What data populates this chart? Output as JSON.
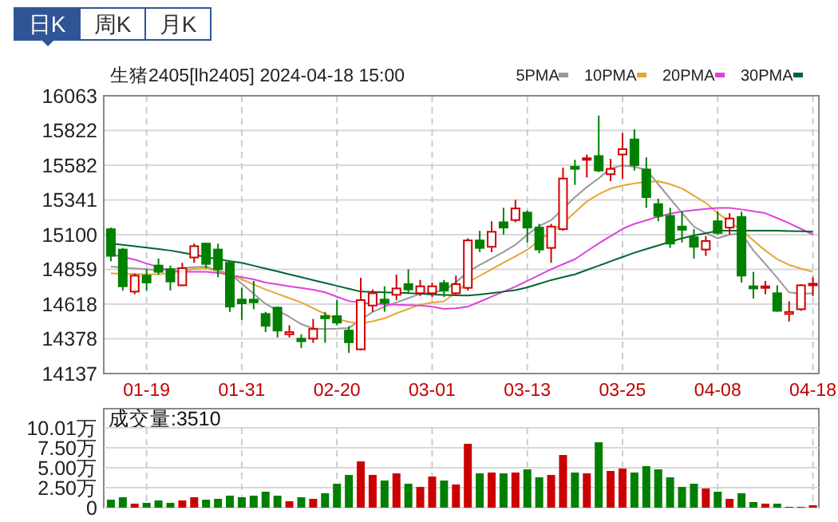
{
  "chart_data": [
    {
      "type": "candlestick",
      "title": "生猪2405[lh2405] 2024-04-18 15:00",
      "annotations": [
        "日K",
        "周K",
        "月K"
      ],
      "categories": [
        null,
        null,
        null,
        "01-19",
        null,
        null,
        null,
        null,
        null,
        null,
        null,
        "01-31",
        null,
        null,
        null,
        null,
        null,
        null,
        null,
        "02-20",
        null,
        null,
        null,
        null,
        null,
        null,
        null,
        "03-01",
        null,
        null,
        null,
        null,
        null,
        null,
        null,
        "03-13",
        null,
        null,
        null,
        null,
        null,
        null,
        null,
        "03-25",
        null,
        null,
        null,
        null,
        null,
        null,
        null,
        "04-08",
        null,
        null,
        null,
        null,
        null,
        null,
        null,
        "04-18"
      ],
      "ohlc": [
        [
          15138,
          15149,
          14916,
          14953
        ],
        [
          14997,
          15008,
          14713,
          14742
        ],
        [
          14705,
          14831,
          14687,
          14816
        ],
        [
          14816,
          14861,
          14713,
          14768
        ],
        [
          14886,
          14934,
          14823,
          14842
        ],
        [
          14860,
          14886,
          14713,
          14775
        ],
        [
          14749,
          14905,
          14742,
          14868
        ],
        [
          14942,
          15038,
          14905,
          15020
        ],
        [
          15038,
          15045,
          14868,
          14897
        ],
        [
          14997,
          15038,
          14805,
          14860
        ],
        [
          14905,
          14916,
          14564,
          14601
        ],
        [
          14650,
          14731,
          14509,
          14624
        ],
        [
          14650,
          14779,
          14583,
          14631
        ],
        [
          14550,
          14565,
          14424,
          14468
        ],
        [
          14594,
          14601,
          14387,
          14435
        ],
        [
          14409,
          14472,
          14387,
          14424
        ],
        [
          14379,
          14409,
          14313,
          14361
        ],
        [
          14379,
          14516,
          14350,
          14446
        ],
        [
          14535,
          14564,
          14350,
          14520
        ],
        [
          14535,
          14646,
          14472,
          14490
        ],
        [
          14435,
          14465,
          14280,
          14354
        ],
        [
          14305,
          14801,
          14298,
          14646
        ],
        [
          14609,
          14720,
          14565,
          14694
        ],
        [
          14650,
          14742,
          14565,
          14627
        ],
        [
          14683,
          14823,
          14646,
          14727
        ],
        [
          14757,
          14860,
          14694,
          14720
        ],
        [
          14694,
          14786,
          14675,
          14742
        ],
        [
          14694,
          14768,
          14668,
          14742
        ],
        [
          14764,
          14786,
          14668,
          14712
        ],
        [
          14694,
          14816,
          14675,
          14757
        ],
        [
          14731,
          15075,
          14712,
          15060
        ],
        [
          15060,
          15127,
          14979,
          15008
        ],
        [
          15016,
          15193,
          14979,
          15120
        ],
        [
          15186,
          15286,
          15101,
          15149
        ],
        [
          15201,
          15341,
          15186,
          15282
        ],
        [
          15253,
          15267,
          15046,
          15149
        ],
        [
          15149,
          15175,
          14971,
          14997
        ],
        [
          15008,
          15175,
          14905,
          15156
        ],
        [
          15138,
          15564,
          15127,
          15489
        ],
        [
          15571,
          15619,
          15445,
          15556
        ],
        [
          15619,
          15656,
          15497,
          15630
        ],
        [
          15645,
          15926,
          15534,
          15545
        ],
        [
          15519,
          15626,
          15471,
          15556
        ],
        [
          15656,
          15804,
          15489,
          15693
        ],
        [
          15760,
          15830,
          15545,
          15582
        ],
        [
          15552,
          15637,
          15286,
          15360
        ],
        [
          15312,
          15349,
          15193,
          15230
        ],
        [
          15230,
          15286,
          15008,
          15038
        ],
        [
          15156,
          15260,
          15046,
          15134
        ],
        [
          15082,
          15138,
          14934,
          15016
        ],
        [
          14997,
          15090,
          14953,
          15056
        ],
        [
          15193,
          15260,
          15101,
          15112
        ],
        [
          15149,
          15249,
          15101,
          15212
        ],
        [
          15223,
          15260,
          14768,
          14816
        ],
        [
          14742,
          14842,
          14657,
          14727
        ],
        [
          14731,
          14779,
          14687,
          14742
        ],
        [
          14694,
          14749,
          14565,
          14572
        ],
        [
          14550,
          14638,
          14498,
          14564
        ],
        [
          14583,
          14757,
          14572,
          14749
        ],
        [
          14749,
          14805,
          14675,
          14760
        ]
      ],
      "series": [
        {
          "type": "line",
          "name": "5PMA",
          "color": "#999999",
          "values": [
            14879,
            14872,
            14866,
            14860,
            14853,
            14860,
            14868,
            14875,
            14879,
            14850,
            14830,
            14760,
            14690,
            14620,
            14575,
            14530,
            14480,
            14450,
            14446,
            14448,
            14453,
            14510,
            14564,
            14600,
            14630,
            14660,
            14690,
            14700,
            14712,
            14770,
            14842,
            14890,
            14935,
            14980,
            15030,
            15100,
            15160,
            15200,
            15280,
            15360,
            15430,
            15490,
            15560,
            15580,
            15570,
            15550,
            15450,
            15350,
            15250,
            15156,
            15110,
            15075,
            15100,
            15110,
            14990,
            14897,
            14800,
            14700,
            14690,
            14694
          ]
        },
        {
          "type": "line",
          "name": "10PMA",
          "color": "#e6a532",
          "values": [
            14831,
            14829,
            14827,
            14825,
            14824,
            14835,
            14850,
            14862,
            14868,
            14845,
            14824,
            14790,
            14755,
            14720,
            14690,
            14660,
            14630,
            14590,
            14550,
            14515,
            14495,
            14483,
            14500,
            14520,
            14555,
            14585,
            14615,
            14630,
            14638,
            14700,
            14768,
            14815,
            14860,
            14905,
            14950,
            14995,
            15060,
            15120,
            15180,
            15255,
            15330,
            15380,
            15420,
            15440,
            15455,
            15465,
            15471,
            15450,
            15420,
            15370,
            15320,
            15250,
            15190,
            15130,
            15060,
            14990,
            14930,
            14890,
            14865,
            14842
          ]
        },
        {
          "type": "line",
          "name": "20PMA",
          "color": "#e040e0",
          "values": [
            14964,
            14945,
            14927,
            14900,
            14875,
            14850,
            14842,
            14842,
            14842,
            14835,
            14820,
            14805,
            14790,
            14768,
            14755,
            14742,
            14730,
            14718,
            14700,
            14670,
            14640,
            14628,
            14620,
            14617,
            14614,
            14611,
            14609,
            14600,
            14585,
            14590,
            14601,
            14635,
            14670,
            14705,
            14740,
            14780,
            14820,
            14860,
            14895,
            14930,
            14985,
            15040,
            15090,
            15140,
            15175,
            15200,
            15225,
            15245,
            15260,
            15270,
            15278,
            15285,
            15286,
            15275,
            15262,
            15249,
            15215,
            15180,
            15140,
            15101
          ]
        },
        {
          "type": "line",
          "name": "30PMA",
          "color": "#006633",
          "values": [
            15038,
            15030,
            15020,
            15010,
            15000,
            14990,
            14975,
            14960,
            14945,
            14930,
            14916,
            14905,
            14885,
            14865,
            14845,
            14825,
            14805,
            14785,
            14765,
            14745,
            14725,
            14705,
            14703,
            14700,
            14698,
            14695,
            14690,
            14685,
            14682,
            14680,
            14678,
            14685,
            14695,
            14705,
            14715,
            14735,
            14760,
            14785,
            14805,
            14825,
            14855,
            14885,
            14915,
            14945,
            14975,
            15000,
            15025,
            15050,
            15075,
            15095,
            15110,
            15127,
            15127,
            15127,
            15127,
            15127,
            15127,
            15125,
            15123,
            15120
          ]
        }
      ],
      "ylim": [
        14137,
        16063
      ],
      "yticks": [
        14137,
        14378,
        14618,
        14859,
        15100,
        15341,
        15582,
        15822,
        16063
      ],
      "grid": true,
      "legend": "top right"
    },
    {
      "type": "bar",
      "annotations": [
        "成交量:3510"
      ],
      "categories": [
        null,
        null,
        null,
        null,
        null,
        null,
        null,
        null,
        null,
        null,
        null,
        null,
        null,
        null,
        null,
        null,
        null,
        null,
        null,
        null,
        null,
        null,
        null,
        null,
        null,
        null,
        null,
        null,
        null,
        null,
        null,
        null,
        null,
        null,
        null,
        null,
        null,
        null,
        null,
        null,
        null,
        null,
        null,
        null,
        null,
        null,
        null,
        null,
        null,
        null,
        null,
        null,
        null,
        null,
        null,
        null,
        null,
        null,
        null,
        null
      ],
      "values": [
        1.0,
        1.3,
        0.5,
        0.6,
        0.9,
        0.6,
        0.9,
        1.3,
        1.0,
        1.1,
        1.5,
        1.3,
        1.5,
        2.0,
        1.5,
        0.8,
        1.3,
        1.1,
        1.8,
        3.0,
        4.1,
        5.8,
        4.1,
        3.4,
        4.3,
        3.0,
        2.6,
        3.9,
        3.4,
        2.9,
        8.0,
        4.3,
        4.4,
        4.3,
        4.4,
        4.8,
        3.8,
        4.1,
        6.6,
        4.4,
        4.3,
        8.2,
        4.6,
        4.9,
        4.4,
        5.2,
        4.8,
        3.8,
        2.6,
        3.0,
        2.4,
        2.0,
        1.1,
        1.8,
        0.7,
        0.5,
        0.5,
        0.1,
        0.1,
        0.3
      ],
      "colors": [
        "#008000",
        "#008000",
        "#cc0000",
        "#008000",
        "#008000",
        "#008000",
        "#cc0000",
        "#cc0000",
        "#008000",
        "#008000",
        "#008000",
        "#008000",
        "#008000",
        "#008000",
        "#008000",
        "#cc0000",
        "#008000",
        "#cc0000",
        "#008000",
        "#008000",
        "#008000",
        "#cc0000",
        "#cc0000",
        "#008000",
        "#cc0000",
        "#008000",
        "#cc0000",
        "#cc0000",
        "#008000",
        "#cc0000",
        "#cc0000",
        "#008000",
        "#cc0000",
        "#008000",
        "#cc0000",
        "#008000",
        "#008000",
        "#cc0000",
        "#cc0000",
        "#008000",
        "#cc0000",
        "#008000",
        "#cc0000",
        "#cc0000",
        "#008000",
        "#008000",
        "#008000",
        "#008000",
        "#008000",
        "#008000",
        "#cc0000",
        "#008000",
        "#cc0000",
        "#008000",
        "#008000",
        "#cc0000",
        "#008000",
        "#cc0000",
        "#cc0000",
        "#cc0000"
      ],
      "ylim": [
        0,
        10.01
      ],
      "yticks": [
        0,
        {
          "value": 2.5,
          "label": "2.50万"
        },
        {
          "value": 5,
          "label": "5.00万"
        },
        {
          "value": 7.5,
          "label": "7.50万"
        },
        {
          "value": 10.01,
          "label": "10.01万"
        }
      ],
      "grid": true,
      "tick_labels": "y"
    }
  ]
}
